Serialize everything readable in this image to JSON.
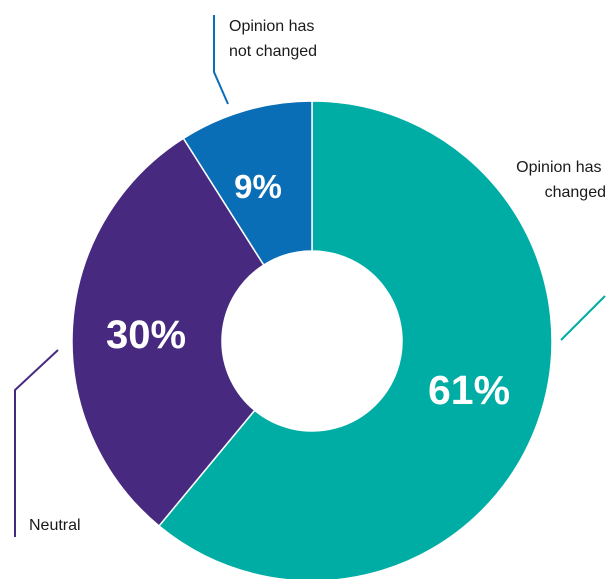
{
  "chart_data": {
    "type": "pie",
    "donut": true,
    "slices": [
      {
        "label": "Opinion has changed",
        "value": 61,
        "display": "61%",
        "color": "#00ADA4"
      },
      {
        "label": "Neutral",
        "value": 30,
        "display": "30%",
        "color": "#472A7F"
      },
      {
        "label": "Opinion has not changed",
        "value": 9,
        "display": "9%",
        "color": "#0A6EB6"
      }
    ],
    "callouts": {
      "changed": [
        "Opinion has",
        "changed"
      ],
      "neutral": [
        "Neutral"
      ],
      "not_changed": [
        "Opinion has",
        "not changed"
      ]
    }
  }
}
